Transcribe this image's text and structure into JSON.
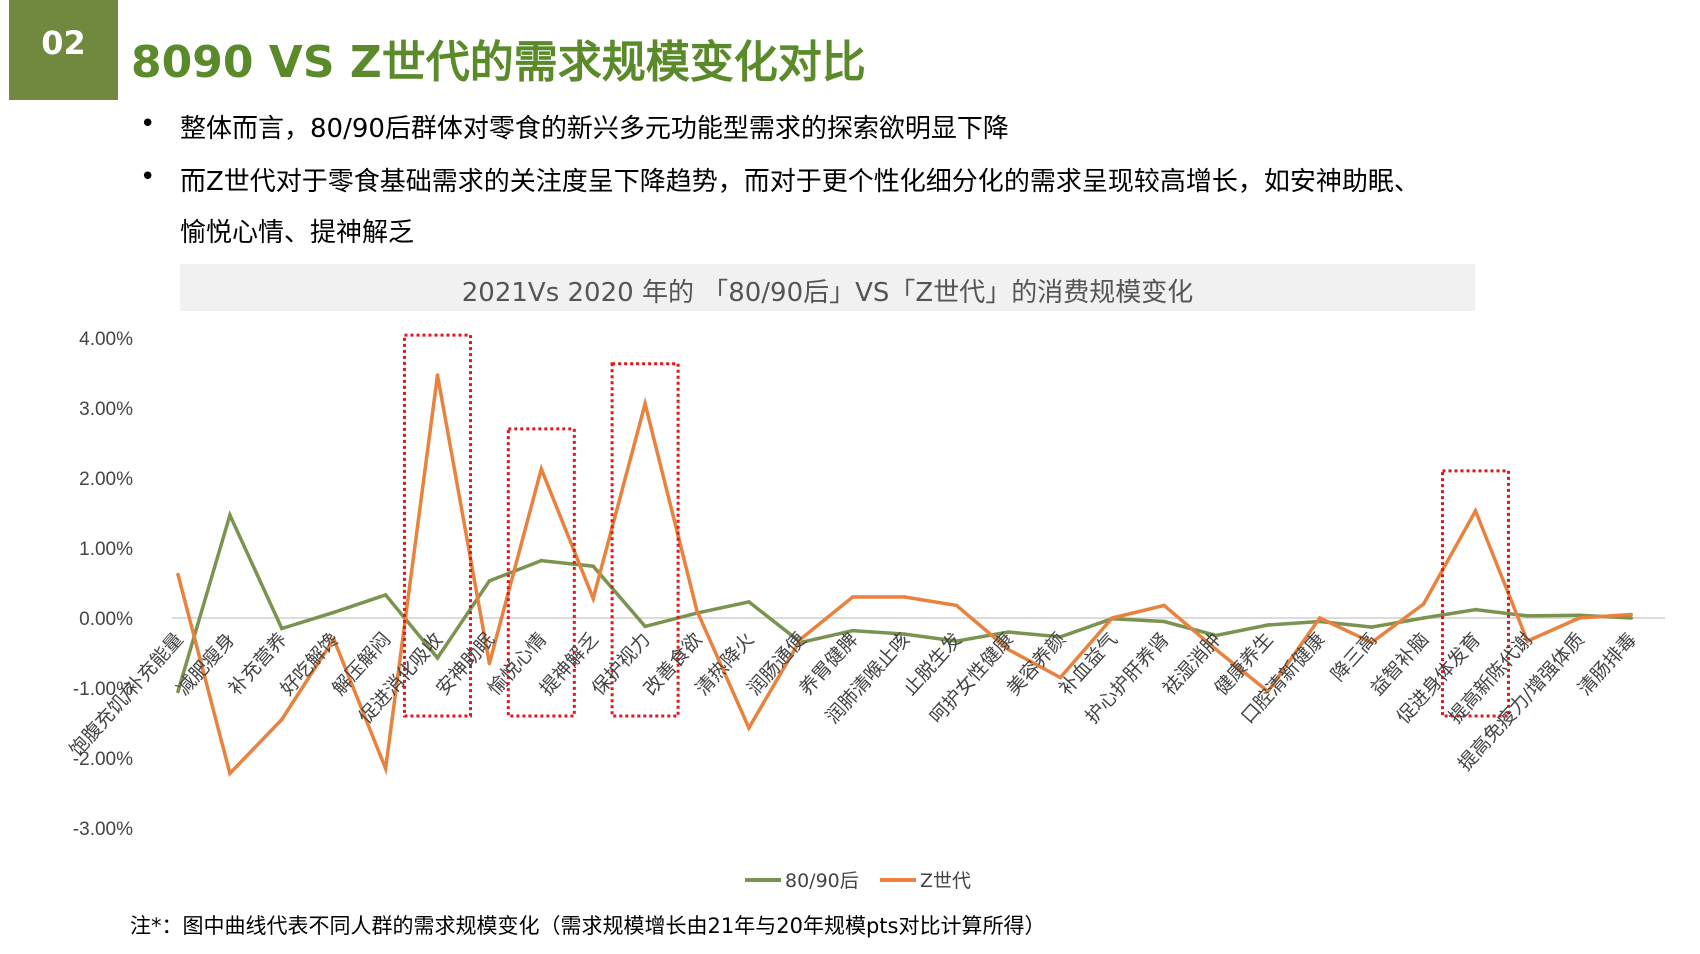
{
  "header": {
    "badge": "02",
    "title": "8090 VS Z世代的需求规模变化对比"
  },
  "bullets": [
    "整体而言，80/90后群体对零食的新兴多元功能型需求的探索欲明显下降",
    "而Z世代对于零食基础需求的关注度呈下降趋势，而对于更个性化细分化的需求呈现较高增长，如安神助眠、",
    "愉悦心情、提神解乏"
  ],
  "bullet_symbol": "•",
  "note": "注*：图中曲线代表不同人群的需求规模变化（需求规模增长由21年与20年规模pts对比计算所得）",
  "chart_data": {
    "type": "line",
    "title": "2021Vs 2020 年的 「80/90后」VS「Z世代」的消费规模变化",
    "xlabel": "",
    "ylabel": "",
    "ylim": [
      -3,
      4
    ],
    "yticks": [
      "4.00%",
      "3.00%",
      "2.00%",
      "1.00%",
      "0.00%",
      "-1.00%",
      "-2.00%",
      "-3.00%"
    ],
    "ytick_values": [
      4,
      3,
      2,
      1,
      0,
      -1,
      -2,
      -3
    ],
    "grid": false,
    "legend": "bottom",
    "categories": [
      "饱腹充饥/补充能量",
      "减肥瘦身",
      "补充营养",
      "好吃解馋",
      "解压解闷",
      "促进消化吸收",
      "安神助眠",
      "愉悦心情",
      "提神解乏",
      "保护视力",
      "改善食欲",
      "清热降火",
      "润肠通便",
      "养胃健脾",
      "润肺清喉止咳",
      "止脱生发",
      "呵护女性健康",
      "美容养颜",
      "补血益气",
      "护心护肝养肾",
      "祛湿消肿",
      "健康养生",
      "口腔清新健康",
      "降三高",
      "益智补脑",
      "促进身体发育",
      "提高新陈代谢",
      "提高免疫力/增强体质",
      "清肠排毒"
    ],
    "series": [
      {
        "name": "80/90后",
        "color": "#7a9450",
        "values": [
          -1.05,
          1.47,
          -0.15,
          0.08,
          0.33,
          -0.57,
          0.53,
          0.82,
          0.74,
          -0.12,
          0.07,
          0.23,
          -0.35,
          -0.18,
          -0.23,
          -0.33,
          -0.2,
          -0.27,
          -0.01,
          -0.05,
          -0.25,
          -0.1,
          -0.05,
          -0.13,
          0.0,
          0.12,
          0.03,
          0.04,
          0.0
        ]
      },
      {
        "name": "Z世代",
        "color": "#e8823e",
        "values": [
          0.62,
          -2.22,
          -1.45,
          -0.3,
          -2.15,
          3.47,
          -0.65,
          2.13,
          0.28,
          3.06,
          0.1,
          -1.57,
          -0.3,
          0.3,
          0.3,
          0.18,
          -0.45,
          -0.85,
          0.0,
          0.18,
          -0.45,
          -1.05,
          0.0,
          -0.35,
          0.2,
          1.53,
          -0.33,
          0.0,
          0.05
        ]
      }
    ],
    "highlight_boxes": [
      {
        "categories": [
          "促进消化吸收"
        ]
      },
      {
        "categories": [
          "愉悦心情"
        ]
      },
      {
        "categories": [
          "保护视力"
        ]
      },
      {
        "categories": [
          "促进身体发育"
        ]
      }
    ],
    "highlight_color": "#e0181e",
    "axis_color": "#d0d0d0",
    "label_color": "#444444"
  }
}
